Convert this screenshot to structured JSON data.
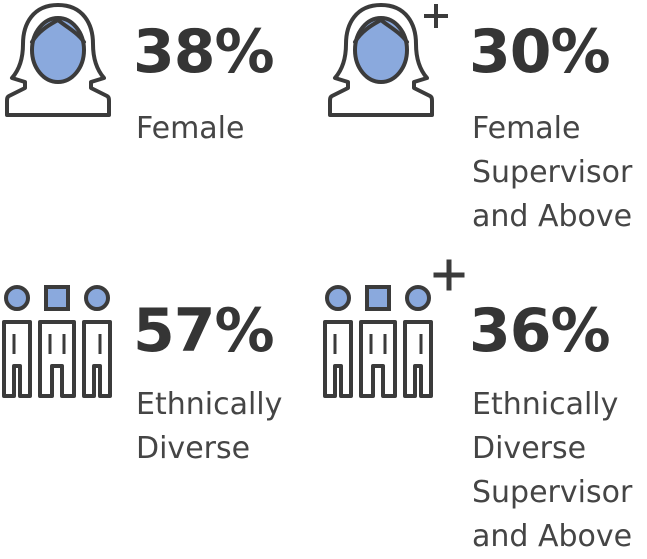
{
  "colors": {
    "icon_fill": "#8aa9dd",
    "icon_stroke": "#3b3b3b",
    "text": "#3d3d3d"
  },
  "stats": [
    {
      "icon": "female-person-icon",
      "value": "38%",
      "label_lines": [
        "Female"
      ]
    },
    {
      "icon": "female-person-plus-icon",
      "value": "30%",
      "label_lines": [
        "Female",
        "Supervisor",
        "and Above"
      ]
    },
    {
      "icon": "diverse-group-icon",
      "value": "57%",
      "label_lines": [
        "Ethnically",
        "Diverse"
      ]
    },
    {
      "icon": "diverse-group-plus-icon",
      "value": "36%",
      "label_lines": [
        "Ethnically",
        "Diverse",
        "Supervisor",
        "and Above"
      ]
    }
  ]
}
